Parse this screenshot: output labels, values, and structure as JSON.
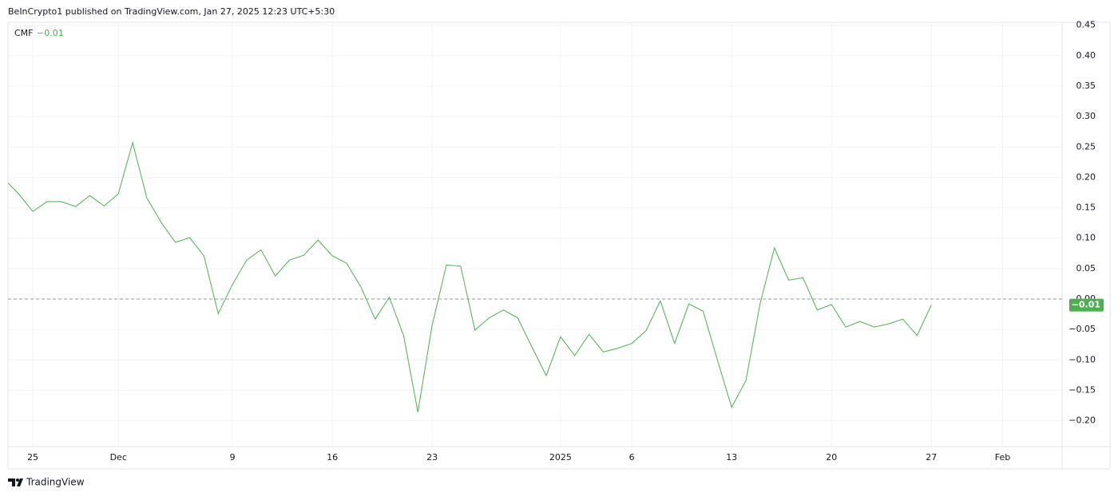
{
  "header": "BeInCrypto1 published on TradingView.com, Jan 27, 2025 12:23 UTC+5:30",
  "footer": "TradingView",
  "chart_data": {
    "type": "line",
    "series": [
      {
        "name": "CMF",
        "color": "#4caf50",
        "values": [
          0.197,
          0.173,
          0.144,
          0.16,
          0.16,
          0.152,
          0.17,
          0.153,
          0.173,
          0.257,
          0.166,
          0.126,
          0.093,
          0.101,
          0.071,
          -0.024,
          0.024,
          0.064,
          0.081,
          0.038,
          0.064,
          0.072,
          0.097,
          0.071,
          0.059,
          0.02,
          -0.033,
          0.003,
          -0.06,
          -0.186,
          -0.043,
          0.056,
          0.054,
          -0.051,
          -0.031,
          -0.018,
          -0.031,
          -0.079,
          -0.126,
          -0.062,
          -0.093,
          -0.058,
          -0.087,
          -0.081,
          -0.073,
          -0.052,
          -0.003,
          -0.073,
          -0.008,
          -0.02,
          -0.1,
          -0.178,
          -0.134,
          -0.007,
          0.084,
          0.031,
          0.035,
          -0.018,
          -0.009,
          -0.046,
          -0.037,
          -0.046,
          -0.041,
          -0.033,
          -0.06,
          -0.01
        ]
      }
    ],
    "last_value": {
      "value": -0.01,
      "label": "−0.01"
    },
    "reference_line": 0,
    "xlim": [
      0.26,
      74.17
    ],
    "xticks": [
      {
        "value": 2,
        "label": "25"
      },
      {
        "value": 8,
        "label": "Dec"
      },
      {
        "value": 16,
        "label": "9"
      },
      {
        "value": 23,
        "label": "16"
      },
      {
        "value": 30,
        "label": "23"
      },
      {
        "value": 39,
        "label": "2025"
      },
      {
        "value": 44,
        "label": "6"
      },
      {
        "value": 51,
        "label": "13"
      },
      {
        "value": 58,
        "label": "20"
      },
      {
        "value": 65,
        "label": "27"
      },
      {
        "value": 70,
        "label": "Feb"
      }
    ],
    "ylim": [
      -0.2425,
      0.4548
    ],
    "yticks": [
      0.45,
      {
        "value": 0.4,
        "label": "0.40"
      },
      0.35,
      {
        "value": 0.3,
        "label": "0.30"
      },
      0.25,
      {
        "value": 0.2,
        "label": "0.20"
      },
      0.15,
      {
        "value": 0.1,
        "label": "0.10"
      },
      0.05,
      {
        "value": 0,
        "label": "0.00"
      },
      {
        "value": -0.05,
        "label": "−0.05"
      },
      {
        "value": -0.1,
        "label": "−0.10"
      },
      {
        "value": -0.15,
        "label": "−0.15"
      },
      {
        "value": -0.2,
        "label": "−0.20"
      }
    ],
    "grid": true
  }
}
